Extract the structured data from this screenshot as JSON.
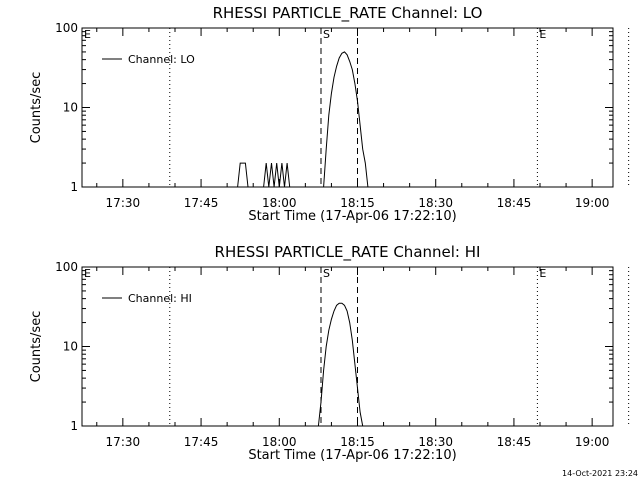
{
  "timestamp": "14-Oct-2021 23:24",
  "chart_data": [
    {
      "type": "line",
      "title": "RHESSI PARTICLE_RATE Channel: LO",
      "xlabel": "Start Time (17-Apr-06 17:22:10)",
      "ylabel": "Counts/sec",
      "yscale": "log",
      "xlim": [
        "17:22:10",
        "19:04"
      ],
      "ylim": [
        1,
        100
      ],
      "x_ticks": [
        "17:30",
        "17:45",
        "18:00",
        "18:15",
        "18:30",
        "18:45",
        "19:00"
      ],
      "y_ticks": [
        "1",
        "10",
        "100"
      ],
      "legend": {
        "position": "top-left",
        "entries": [
          "Channel: LO"
        ]
      },
      "series": [
        {
          "name": "Channel: LO",
          "points": [
            [
              "17:52:00",
              1
            ],
            [
              "17:52:30",
              2
            ],
            [
              "17:53:30",
              2
            ],
            [
              "17:54:00",
              1
            ],
            [
              "17:57:00",
              1
            ],
            [
              "17:57:30",
              2
            ],
            [
              "17:58:00",
              1
            ],
            [
              "17:58:30",
              2
            ],
            [
              "17:59:00",
              1
            ],
            [
              "17:59:30",
              2
            ],
            [
              "18:00:00",
              1
            ],
            [
              "18:00:30",
              2
            ],
            [
              "18:01:00",
              1
            ],
            [
              "18:01:30",
              2
            ],
            [
              "18:02:00",
              1
            ],
            [
              "18:08:30",
              1
            ],
            [
              "18:09:00",
              3
            ],
            [
              "18:09:30",
              8
            ],
            [
              "18:10:00",
              15
            ],
            [
              "18:10:30",
              24
            ],
            [
              "18:11:00",
              33
            ],
            [
              "18:11:30",
              42
            ],
            [
              "18:12:00",
              48
            ],
            [
              "18:12:30",
              50
            ],
            [
              "18:13:00",
              46
            ],
            [
              "18:13:30",
              38
            ],
            [
              "18:14:00",
              30
            ],
            [
              "18:14:30",
              20
            ],
            [
              "18:15:00",
              12
            ],
            [
              "18:15:30",
              6
            ],
            [
              "18:16:00",
              3
            ],
            [
              "18:16:30",
              2
            ],
            [
              "18:17:00",
              1
            ]
          ]
        }
      ],
      "markers": [
        {
          "label": "E",
          "time": "17:22:10",
          "style": "dotted"
        },
        {
          "label": "",
          "time": "17:39:00",
          "style": "dotted"
        },
        {
          "label": "S",
          "time": "18:08:00",
          "style": "dashed"
        },
        {
          "label": "",
          "time": "18:15:00",
          "style": "dashed"
        },
        {
          "label": "E",
          "time": "18:49:30",
          "style": "dotted"
        },
        {
          "label": "",
          "time": "19:07:00",
          "style": "dotted"
        }
      ]
    },
    {
      "type": "line",
      "title": "RHESSI PARTICLE_RATE Channel: HI",
      "xlabel": "Start Time (17-Apr-06 17:22:10)",
      "ylabel": "Counts/sec",
      "yscale": "log",
      "xlim": [
        "17:22:10",
        "19:04"
      ],
      "ylim": [
        1,
        100
      ],
      "x_ticks": [
        "17:30",
        "17:45",
        "18:00",
        "18:15",
        "18:30",
        "18:45",
        "19:00"
      ],
      "y_ticks": [
        "1",
        "10",
        "100"
      ],
      "legend": {
        "position": "top-left",
        "entries": [
          "Channel: HI"
        ]
      },
      "series": [
        {
          "name": "Channel: HI",
          "points": [
            [
              "18:07:30",
              1
            ],
            [
              "18:08:00",
              2
            ],
            [
              "18:08:30",
              5
            ],
            [
              "18:09:00",
              10
            ],
            [
              "18:09:30",
              16
            ],
            [
              "18:10:00",
              22
            ],
            [
              "18:10:30",
              28
            ],
            [
              "18:11:00",
              33
            ],
            [
              "18:11:30",
              35
            ],
            [
              "18:12:00",
              35
            ],
            [
              "18:12:30",
              33
            ],
            [
              "18:13:00",
              28
            ],
            [
              "18:13:30",
              20
            ],
            [
              "18:14:00",
              12
            ],
            [
              "18:14:30",
              6
            ],
            [
              "18:15:00",
              3
            ],
            [
              "18:15:30",
              1.5
            ],
            [
              "18:16:00",
              1
            ]
          ]
        }
      ],
      "markers": [
        {
          "label": "E",
          "time": "17:22:10",
          "style": "dotted"
        },
        {
          "label": "",
          "time": "17:39:00",
          "style": "dotted"
        },
        {
          "label": "S",
          "time": "18:08:00",
          "style": "dashed"
        },
        {
          "label": "",
          "time": "18:15:00",
          "style": "dashed"
        },
        {
          "label": "E",
          "time": "18:49:30",
          "style": "dotted"
        },
        {
          "label": "",
          "time": "19:07:00",
          "style": "dotted"
        }
      ]
    }
  ]
}
